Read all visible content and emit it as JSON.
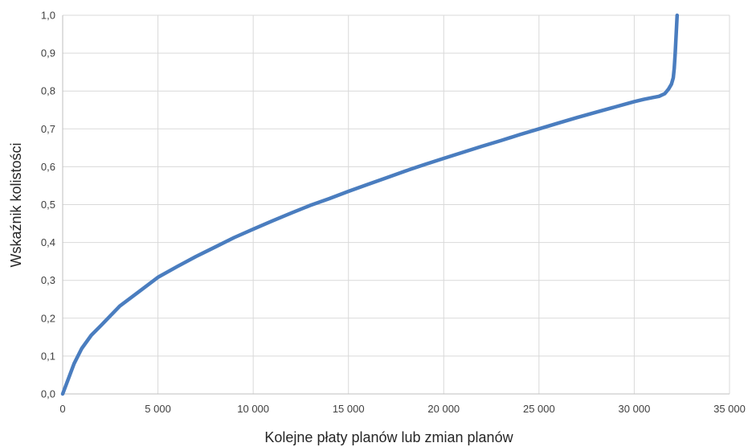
{
  "chart_data": {
    "type": "line",
    "title": "",
    "xlabel": "Kolejne płaty planów lub zmian planów",
    "ylabel": "Wskaźnik kolistości",
    "xlim": [
      0,
      35000
    ],
    "ylim": [
      0,
      1.0
    ],
    "x_ticks": [
      0,
      5000,
      10000,
      15000,
      20000,
      25000,
      30000,
      35000
    ],
    "x_tick_labels": [
      "0",
      "5 000",
      "10 000",
      "15 000",
      "20 000",
      "25 000",
      "30 000",
      "35 000"
    ],
    "y_ticks": [
      0,
      0.1,
      0.2,
      0.3,
      0.4,
      0.5,
      0.6,
      0.7,
      0.8,
      0.9,
      1.0
    ],
    "y_tick_labels": [
      "0,0",
      "0,1",
      "0,2",
      "0,3",
      "0,4",
      "0,5",
      "0,6",
      "0,7",
      "0,8",
      "0,9",
      "1,0"
    ],
    "grid": {
      "vertical": true,
      "horizontal": true
    },
    "series": [
      {
        "color": "#4a7dbf",
        "x": [
          0,
          300,
          600,
          1000,
          1500,
          2000,
          3000,
          4000,
          5000,
          6000,
          7000,
          8000,
          9000,
          10000,
          11000,
          12000,
          13000,
          14000,
          15000,
          16000,
          17000,
          18000,
          19000,
          20000,
          21000,
          22000,
          23000,
          24000,
          25000,
          26000,
          27000,
          28000,
          29000,
          30000,
          30500,
          31000,
          31300,
          31600,
          31800,
          31950,
          32050,
          32100,
          32150,
          32200,
          32250
        ],
        "y": [
          0.0,
          0.04,
          0.08,
          0.12,
          0.155,
          0.18,
          0.232,
          0.27,
          0.308,
          0.336,
          0.363,
          0.388,
          0.413,
          0.435,
          0.457,
          0.478,
          0.498,
          0.516,
          0.535,
          0.553,
          0.571,
          0.589,
          0.606,
          0.622,
          0.638,
          0.654,
          0.669,
          0.685,
          0.7,
          0.715,
          0.73,
          0.744,
          0.758,
          0.772,
          0.778,
          0.783,
          0.786,
          0.793,
          0.805,
          0.818,
          0.835,
          0.86,
          0.9,
          0.95,
          1.0
        ]
      }
    ]
  },
  "colors": {
    "grid": "#d9d9d9",
    "axis": "#bfbfbf",
    "line": "#4a7dbf"
  }
}
